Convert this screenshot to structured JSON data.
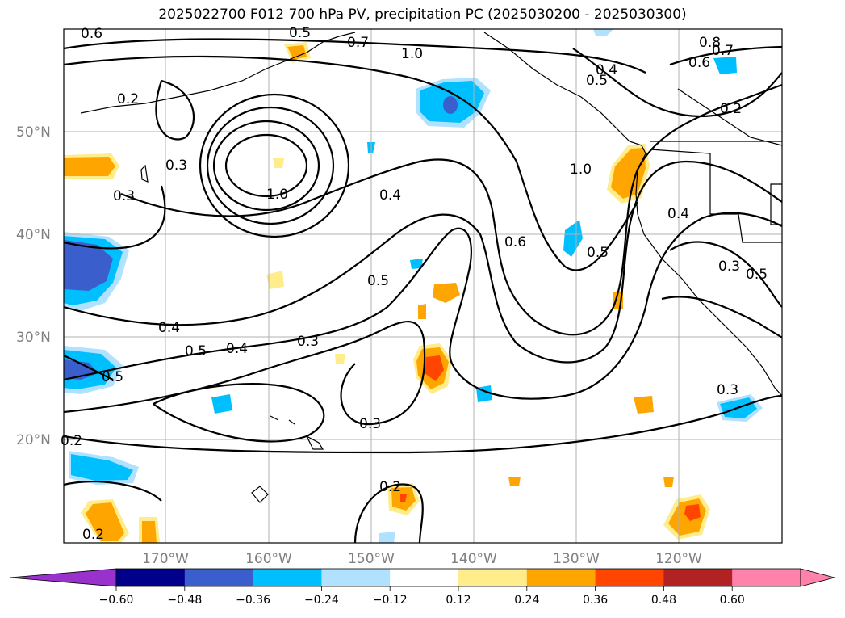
{
  "title": "2025022700 F012 700 hPa PV, precipitation PC (2025030200 - 2025030300)",
  "map": {
    "lat_labels": [
      "50°N",
      "40°N",
      "30°N",
      "20°N"
    ],
    "lon_labels": [
      "170°W",
      "160°W",
      "150°W",
      "140°W",
      "130°W",
      "120°W"
    ],
    "contour_labels": [
      "0.6",
      "0.5",
      "0.7",
      "1.0",
      "0.8",
      "0.7",
      "0.6",
      "0.4",
      "0.5",
      "0.2",
      "0.3",
      "1.0",
      "0.4",
      "1.0",
      "0.3",
      "0.6",
      "0.5",
      "0.4",
      "0.2",
      "0.3",
      "0.5",
      "0.4",
      "0.5",
      "0.4",
      "0.3",
      "0.5",
      "0.3",
      "0.2",
      "0.2",
      "0.2",
      "0.3",
      "0.5"
    ]
  },
  "colorbar": {
    "ticks": [
      "−0.60",
      "−0.48",
      "−0.36",
      "−0.24",
      "−0.12",
      "0.12",
      "0.24",
      "0.36",
      "0.48",
      "0.60"
    ],
    "colors": [
      "#9932cc",
      "#00008b",
      "#3a5fcd",
      "#00bfff",
      "#b0e2ff",
      "#ffffff",
      "#ffec8b",
      "#ffa500",
      "#ff4500",
      "#b22222",
      "#ff82ab",
      "#ff82ab"
    ]
  }
}
